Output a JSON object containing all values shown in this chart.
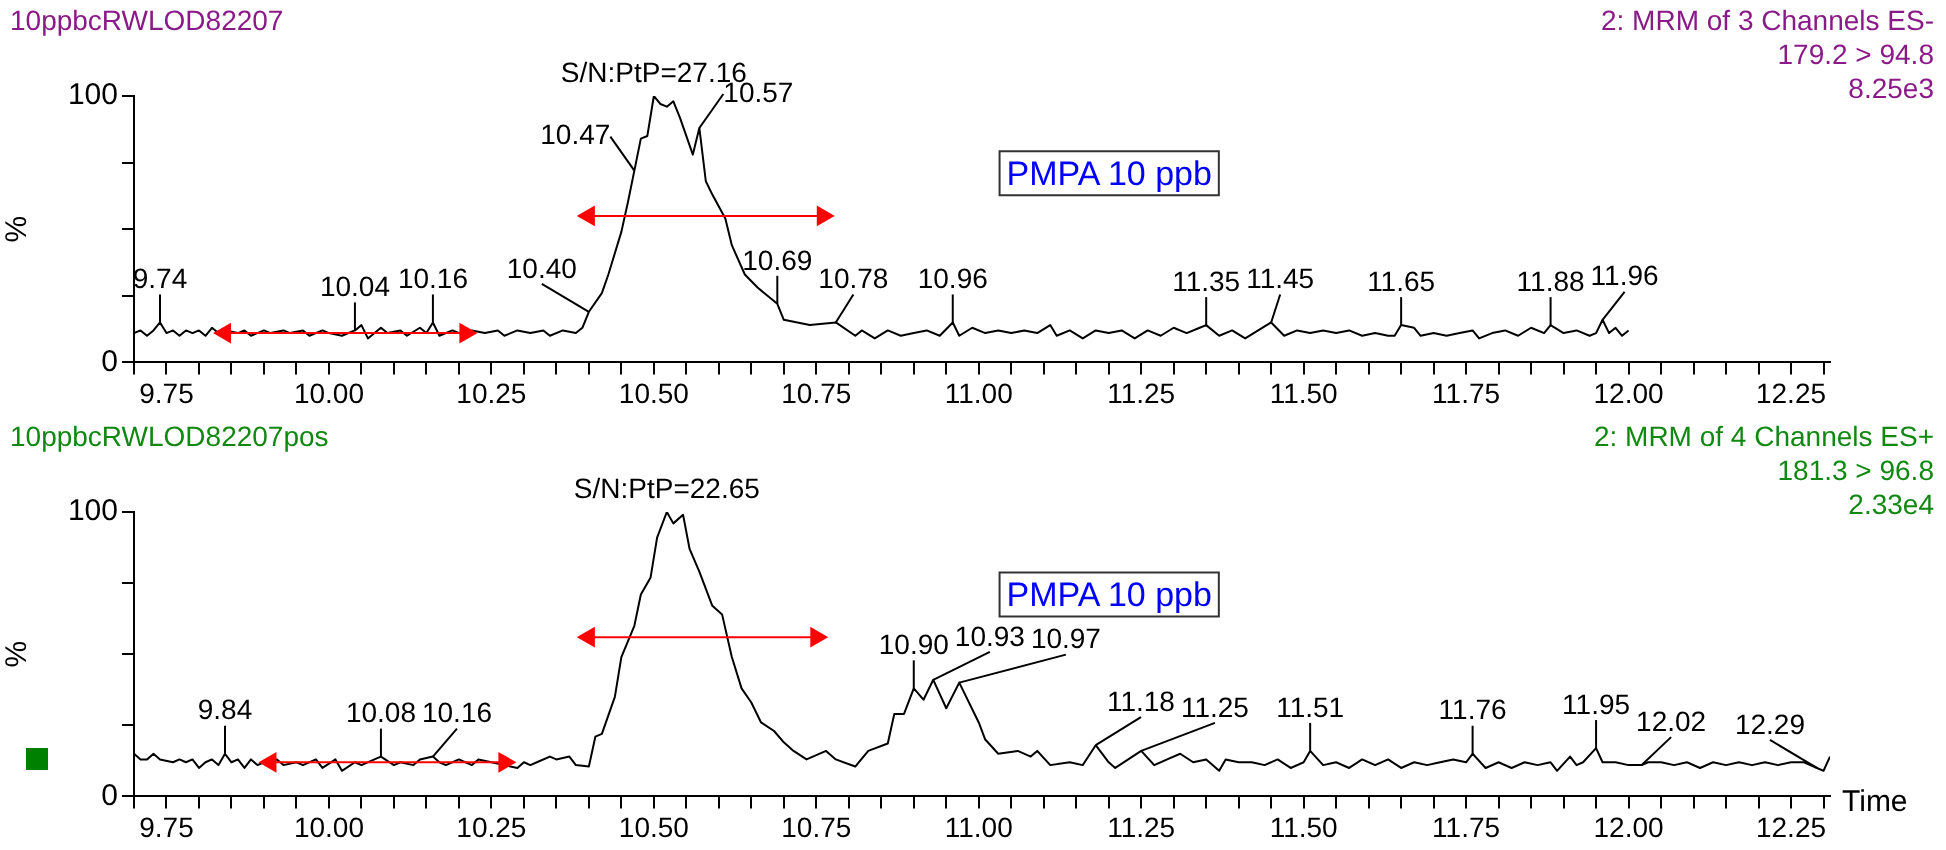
{
  "chart_data": [
    {
      "type": "line",
      "title": "10ppbcRWLOD82207",
      "subtitle": "2: MRM of 3 Channels ES-\n179.2 > 94.8\n8.25e3",
      "ylabel": "%",
      "xlim": [
        9.7,
        12.31
      ],
      "ylim": [
        0,
        100
      ],
      "xticks": [
        {
          "value": 9.7,
          "label": null
        },
        {
          "value": 9.75,
          "label": "9.75"
        },
        {
          "value": 9.8,
          "label": null
        },
        {
          "value": 9.85,
          "label": null
        },
        {
          "value": 9.9,
          "label": null
        },
        {
          "value": 9.95,
          "label": null
        },
        {
          "value": 10,
          "label": "10.00"
        },
        {
          "value": 10.05,
          "label": null
        },
        {
          "value": 10.1,
          "label": null
        },
        {
          "value": 10.15,
          "label": null
        },
        {
          "value": 10.2,
          "label": null
        },
        {
          "value": 10.25,
          "label": "10.25"
        },
        {
          "value": 10.3,
          "label": null
        },
        {
          "value": 10.35,
          "label": null
        },
        {
          "value": 10.4,
          "label": null
        },
        {
          "value": 10.45,
          "label": null
        },
        {
          "value": 10.5,
          "label": "10.50"
        },
        {
          "value": 10.55,
          "label": null
        },
        {
          "value": 10.6,
          "label": null
        },
        {
          "value": 10.65,
          "label": null
        },
        {
          "value": 10.7,
          "label": null
        },
        {
          "value": 10.75,
          "label": "10.75"
        },
        {
          "value": 10.8,
          "label": null
        },
        {
          "value": 10.85,
          "label": null
        },
        {
          "value": 10.9,
          "label": null
        },
        {
          "value": 10.95,
          "label": null
        },
        {
          "value": 11,
          "label": "11.00"
        },
        {
          "value": 11.05,
          "label": null
        },
        {
          "value": 11.1,
          "label": null
        },
        {
          "value": 11.15,
          "label": null
        },
        {
          "value": 11.2,
          "label": null
        },
        {
          "value": 11.25,
          "label": "11.25"
        },
        {
          "value": 11.3,
          "label": null
        },
        {
          "value": 11.35,
          "label": null
        },
        {
          "value": 11.4,
          "label": null
        },
        {
          "value": 11.45,
          "label": null
        },
        {
          "value": 11.5,
          "label": "11.50"
        },
        {
          "value": 11.55,
          "label": null
        },
        {
          "value": 11.6,
          "label": null
        },
        {
          "value": 11.65,
          "label": null
        },
        {
          "value": 11.7,
          "label": null
        },
        {
          "value": 11.75,
          "label": "11.75"
        },
        {
          "value": 11.8,
          "label": null
        },
        {
          "value": 11.85,
          "label": null
        },
        {
          "value": 11.9,
          "label": null
        },
        {
          "value": 11.95,
          "label": null
        },
        {
          "value": 12,
          "label": "12.00"
        },
        {
          "value": 12.05,
          "label": null
        },
        {
          "value": 12.1,
          "label": null
        },
        {
          "value": 12.15,
          "label": null
        },
        {
          "value": 12.2,
          "label": null
        },
        {
          "value": 12.25,
          "label": "12.25"
        },
        {
          "value": 12.3,
          "label": null
        }
      ],
      "yticks": [
        {
          "value": 0,
          "label": "0"
        },
        {
          "value": 25,
          "label": null
        },
        {
          "value": 50,
          "label": null
        },
        {
          "value": 75,
          "label": null
        },
        {
          "value": 100,
          "label": "100"
        }
      ],
      "grid": false,
      "legend": false,
      "marker": "none",
      "series": [
        {
          "color": "#000000",
          "x": [
            9.7,
            9.71,
            9.72,
            9.73,
            9.74,
            9.75,
            9.76,
            9.77,
            9.78,
            9.79,
            9.8,
            9.81,
            9.82,
            9.83,
            9.84,
            9.86,
            9.87,
            9.88,
            9.9,
            9.91,
            9.93,
            9.94,
            9.96,
            9.97,
            9.99,
            10.0,
            10.02,
            10.04,
            10.05,
            10.06,
            10.08,
            10.09,
            10.11,
            10.12,
            10.14,
            10.15,
            10.16,
            10.17,
            10.19,
            10.21,
            10.22,
            10.24,
            10.26,
            10.27,
            10.29,
            10.31,
            10.33,
            10.34,
            10.36,
            10.38,
            10.39,
            10.4,
            10.42,
            10.43,
            10.45,
            10.46,
            10.47,
            10.48,
            10.49,
            10.5,
            10.51,
            10.52,
            10.53,
            10.54,
            10.56,
            10.57,
            10.58,
            10.59,
            10.61,
            10.62,
            10.64,
            10.66,
            10.69,
            10.7,
            10.74,
            10.78,
            10.81,
            10.82,
            10.84,
            10.86,
            10.88,
            10.9,
            10.92,
            10.94,
            10.96,
            10.97,
            10.99,
            11.01,
            11.03,
            11.05,
            11.07,
            11.09,
            11.11,
            11.12,
            11.14,
            11.16,
            11.18,
            11.2,
            11.22,
            11.24,
            11.26,
            11.28,
            11.3,
            11.32,
            11.34,
            11.35,
            11.37,
            11.39,
            11.41,
            11.43,
            11.45,
            11.47,
            11.49,
            11.51,
            11.53,
            11.55,
            11.57,
            11.59,
            11.61,
            11.63,
            11.64,
            11.65,
            11.67,
            11.68,
            11.7,
            11.72,
            11.74,
            11.76,
            11.77,
            11.79,
            11.81,
            11.83,
            11.85,
            11.87,
            11.88,
            11.9,
            11.92,
            11.94,
            11.95,
            11.96,
            11.97,
            11.98,
            11.99,
            12.0
          ],
          "values": [
            11,
            12,
            10,
            12,
            15,
            11,
            12,
            10,
            12,
            11,
            12,
            10,
            13,
            11,
            12,
            11,
            12,
            10,
            12,
            11,
            12,
            11,
            12,
            10,
            12,
            11,
            10,
            12,
            14,
            9,
            13,
            11,
            12,
            10,
            13,
            11,
            15,
            10,
            12,
            10,
            12,
            11,
            12,
            10,
            12,
            11,
            12,
            10,
            12,
            11,
            13,
            19,
            26,
            33,
            49,
            60,
            72,
            84,
            85,
            100,
            97,
            96,
            98,
            92,
            78,
            88,
            68,
            63,
            54,
            44,
            33,
            28,
            22,
            16,
            14,
            15,
            10,
            12,
            9,
            12,
            10,
            11,
            12,
            10,
            15,
            10,
            13,
            11,
            12,
            11,
            12,
            11,
            14,
            10,
            12,
            9,
            12,
            11,
            12,
            9,
            12,
            10,
            13,
            11,
            13,
            14,
            10,
            12,
            9,
            12,
            15,
            10,
            12,
            11,
            12,
            11,
            12,
            10,
            11,
            10,
            10,
            14,
            13,
            10,
            11,
            10,
            11,
            12,
            9,
            11,
            12,
            10,
            13,
            11,
            14,
            11,
            12,
            10,
            11,
            16,
            11,
            13,
            10,
            12
          ]
        },
        {
          "type": "line",
          "color": "#ff0000",
          "marker": "triangle",
          "x": [
            9.84,
            10.21
          ],
          "values": [
            11,
            11
          ]
        },
        {
          "type": "line",
          "color": "#ff0000",
          "marker": "triangle",
          "x": [
            10.4,
            10.76
          ],
          "values": [
            55,
            55
          ]
        }
      ],
      "annotations": [
        {
          "text": "S/N:PtP=27.16",
          "x": 10.5,
          "y": 100
        },
        {
          "text": "9.74",
          "x": 9.74,
          "y": 15
        },
        {
          "text": "10.04",
          "x": 10.04,
          "y": 12
        },
        {
          "text": "10.16",
          "x": 10.16,
          "y": 15
        },
        {
          "text": "10.40",
          "x": 10.4,
          "y": 19
        },
        {
          "text": "10.47",
          "x": 10.47,
          "y": 72
        },
        {
          "text": "10.57",
          "x": 10.57,
          "y": 88
        },
        {
          "text": "10.69",
          "x": 10.69,
          "y": 22
        },
        {
          "text": "10.78",
          "x": 10.78,
          "y": 15
        },
        {
          "text": "10.96",
          "x": 10.96,
          "y": 15
        },
        {
          "text": "11.35",
          "x": 11.35,
          "y": 14
        },
        {
          "text": "11.45",
          "x": 11.45,
          "y": 15
        },
        {
          "text": "11.65",
          "x": 11.65,
          "y": 14
        },
        {
          "text": "11.88",
          "x": 11.88,
          "y": 14
        },
        {
          "text": "11.96",
          "x": 11.96,
          "y": 16
        },
        "PMPA 10 ppb"
      ]
    },
    {
      "type": "line",
      "title": "10ppbcRWLOD82207pos",
      "subtitle": "2: MRM of 4 Channels ES+\n181.3 > 96.8\n2.33e4",
      "ylabel": "%",
      "xlabel": "Time",
      "xlim": [
        9.7,
        12.31
      ],
      "ylim": [
        0,
        100
      ],
      "xticks": [
        {
          "value": 9.7,
          "label": null
        },
        {
          "value": 9.75,
          "label": "9.75"
        },
        {
          "value": 9.8,
          "label": null
        },
        {
          "value": 9.85,
          "label": null
        },
        {
          "value": 9.9,
          "label": null
        },
        {
          "value": 9.95,
          "label": null
        },
        {
          "value": 10,
          "label": "10.00"
        },
        {
          "value": 10.05,
          "label": null
        },
        {
          "value": 10.1,
          "label": null
        },
        {
          "value": 10.15,
          "label": null
        },
        {
          "value": 10.2,
          "label": null
        },
        {
          "value": 10.25,
          "label": "10.25"
        },
        {
          "value": 10.3,
          "label": null
        },
        {
          "value": 10.35,
          "label": null
        },
        {
          "value": 10.4,
          "label": null
        },
        {
          "value": 10.45,
          "label": null
        },
        {
          "value": 10.5,
          "label": "10.50"
        },
        {
          "value": 10.55,
          "label": null
        },
        {
          "value": 10.6,
          "label": null
        },
        {
          "value": 10.65,
          "label": null
        },
        {
          "value": 10.7,
          "label": null
        },
        {
          "value": 10.75,
          "label": "10.75"
        },
        {
          "value": 10.8,
          "label": null
        },
        {
          "value": 10.85,
          "label": null
        },
        {
          "value": 10.9,
          "label": null
        },
        {
          "value": 10.95,
          "label": null
        },
        {
          "value": 11,
          "label": "11.00"
        },
        {
          "value": 11.05,
          "label": null
        },
        {
          "value": 11.1,
          "label": null
        },
        {
          "value": 11.15,
          "label": null
        },
        {
          "value": 11.2,
          "label": null
        },
        {
          "value": 11.25,
          "label": "11.25"
        },
        {
          "value": 11.3,
          "label": null
        },
        {
          "value": 11.35,
          "label": null
        },
        {
          "value": 11.4,
          "label": null
        },
        {
          "value": 11.45,
          "label": null
        },
        {
          "value": 11.5,
          "label": "11.50"
        },
        {
          "value": 11.55,
          "label": null
        },
        {
          "value": 11.6,
          "label": null
        },
        {
          "value": 11.65,
          "label": null
        },
        {
          "value": 11.7,
          "label": null
        },
        {
          "value": 11.75,
          "label": "11.75"
        },
        {
          "value": 11.8,
          "label": null
        },
        {
          "value": 11.85,
          "label": null
        },
        {
          "value": 11.9,
          "label": null
        },
        {
          "value": 11.95,
          "label": null
        },
        {
          "value": 12,
          "label": "12.00"
        },
        {
          "value": 12.05,
          "label": null
        },
        {
          "value": 12.1,
          "label": null
        },
        {
          "value": 12.15,
          "label": null
        },
        {
          "value": 12.2,
          "label": null
        },
        {
          "value": 12.25,
          "label": "12.25"
        },
        {
          "value": 12.3,
          "label": null
        }
      ],
      "yticks": [
        {
          "value": 0,
          "label": "0"
        },
        {
          "value": 25,
          "label": null
        },
        {
          "value": 50,
          "label": null
        },
        {
          "value": 75,
          "label": null
        },
        {
          "value": 100,
          "label": "100"
        }
      ],
      "grid": false,
      "legend": false,
      "marker": "none",
      "series": [
        {
          "color": "#000000",
          "x": [
            9.7,
            9.71,
            9.72,
            9.73,
            9.74,
            9.76,
            9.77,
            9.78,
            9.79,
            9.8,
            9.81,
            9.82,
            9.83,
            9.84,
            9.85,
            9.86,
            9.87,
            9.88,
            9.89,
            9.9,
            9.92,
            9.93,
            9.95,
            9.96,
            9.98,
            9.99,
            10.01,
            10.02,
            10.04,
            10.05,
            10.07,
            10.08,
            10.1,
            10.11,
            10.13,
            10.14,
            10.16,
            10.17,
            10.18,
            10.2,
            10.22,
            10.23,
            10.25,
            10.27,
            10.29,
            10.3,
            10.31,
            10.32,
            10.34,
            10.35,
            10.37,
            10.38,
            10.4,
            10.41,
            10.42,
            10.44,
            10.45,
            10.47,
            10.48,
            10.495,
            10.505,
            10.52,
            10.53,
            10.545,
            10.555,
            10.57,
            10.59,
            10.605,
            10.62,
            10.635,
            10.65,
            10.665,
            10.685,
            10.7,
            10.715,
            10.735,
            10.765,
            10.78,
            10.81,
            10.83,
            10.86,
            10.87,
            10.885,
            10.9,
            10.915,
            10.93,
            10.95,
            10.97,
            11.0,
            11.01,
            11.03,
            11.06,
            11.08,
            11.09,
            11.11,
            11.14,
            11.16,
            11.18,
            11.2,
            11.21,
            11.23,
            11.25,
            11.27,
            11.29,
            11.31,
            11.33,
            11.35,
            11.37,
            11.38,
            11.4,
            11.42,
            11.44,
            11.46,
            11.48,
            11.5,
            11.51,
            11.53,
            11.55,
            11.57,
            11.59,
            11.61,
            11.63,
            11.65,
            11.67,
            11.69,
            11.71,
            11.73,
            11.75,
            11.76,
            11.78,
            11.8,
            11.82,
            11.84,
            11.86,
            11.88,
            11.89,
            11.91,
            11.92,
            11.93,
            11.95,
            11.96,
            11.98,
            12.0,
            12.02,
            12.03,
            12.05,
            12.07,
            12.09,
            12.11,
            12.13,
            12.15,
            12.17,
            12.19,
            12.21,
            12.23,
            12.25,
            12.27,
            12.29,
            12.3,
            12.31
          ],
          "values": [
            15,
            13,
            13,
            15,
            13,
            12,
            13,
            12,
            13,
            10,
            12,
            13,
            11,
            15,
            12,
            13,
            10,
            13,
            11,
            12,
            13,
            11,
            12,
            11,
            13,
            10,
            13,
            9,
            12,
            11,
            13,
            14,
            11,
            12,
            11,
            13,
            14,
            12,
            11,
            13,
            11,
            13,
            12,
            11,
            10,
            12,
            11,
            12,
            14,
            13,
            14,
            11,
            10.5,
            21,
            22,
            35,
            49,
            60,
            71,
            77,
            91,
            100,
            96,
            99,
            87,
            79,
            67,
            64,
            49,
            38,
            33,
            26,
            23,
            19,
            16,
            13,
            16,
            13,
            10.5,
            16,
            18.6,
            29,
            29,
            38,
            34,
            41,
            31,
            40,
            26,
            20,
            15,
            16,
            14,
            16,
            11,
            12,
            11,
            18,
            12,
            10,
            13,
            16,
            11,
            13,
            15,
            12,
            13,
            9,
            13,
            12,
            12,
            11,
            13,
            10,
            12,
            16,
            11,
            12,
            10,
            13,
            11,
            13,
            10,
            12,
            11,
            12,
            13,
            12,
            15,
            10,
            12,
            10,
            12,
            11,
            12,
            9,
            14,
            11,
            12,
            17,
            12,
            12,
            11,
            11,
            12,
            12,
            11,
            12,
            10,
            12,
            11,
            12,
            11,
            12,
            11,
            12,
            12,
            10,
            9,
            14
          ]
        },
        {
          "type": "line",
          "color": "#ff0000",
          "marker": "triangle",
          "x": [
            9.91,
            10.27
          ],
          "values": [
            12,
            12
          ]
        },
        {
          "type": "line",
          "color": "#ff0000",
          "marker": "triangle",
          "x": [
            10.4,
            10.75
          ],
          "values": [
            56,
            56
          ]
        }
      ],
      "annotations": [
        {
          "text": "S/N:PtP=22.65",
          "x": 10.52,
          "y": 100
        },
        {
          "text": "9.84",
          "x": 9.84,
          "y": 15
        },
        {
          "text": "10.08",
          "x": 10.08,
          "y": 14
        },
        {
          "text": "10.16",
          "x": 10.16,
          "y": 14
        },
        {
          "text": "10.90",
          "x": 10.9,
          "y": 38
        },
        {
          "text": "10.93",
          "x": 10.93,
          "y": 41
        },
        {
          "text": "10.97",
          "x": 10.97,
          "y": 40
        },
        {
          "text": "11.18",
          "x": 11.18,
          "y": 18
        },
        {
          "text": "11.25",
          "x": 11.25,
          "y": 16
        },
        {
          "text": "11.51",
          "x": 11.51,
          "y": 16
        },
        {
          "text": "11.76",
          "x": 11.76,
          "y": 15
        },
        {
          "text": "11.95",
          "x": 11.95,
          "y": 17
        },
        {
          "text": "12.02",
          "x": 12.02,
          "y": 11
        },
        {
          "text": "12.29",
          "x": 12.29,
          "y": 10
        },
        "PMPA 10 ppb"
      ]
    }
  ]
}
